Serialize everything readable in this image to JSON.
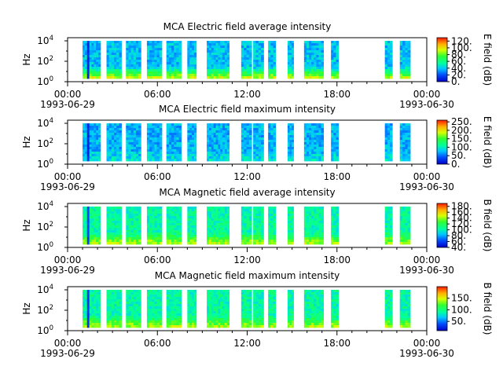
{
  "figure": {
    "background": "#ffffff"
  },
  "chart_data": [
    {
      "type": "heatmap",
      "title": "MCA  Electric field average intensity",
      "ylabel": "Hz",
      "y_scale": "log",
      "y_ticks": [
        {
          "base": "10",
          "exp": "0"
        },
        {
          "base": "10",
          "exp": "2"
        },
        {
          "base": "10",
          "exp": "4"
        }
      ],
      "x_ticks": [
        {
          "time": "00:00",
          "date": "1993-06-29"
        },
        {
          "time": "06:00",
          "date": ""
        },
        {
          "time": "12:00",
          "date": ""
        },
        {
          "time": "18:00",
          "date": ""
        },
        {
          "time": "00:00",
          "date": "1993-06-30"
        }
      ],
      "colorbar": {
        "label": "E field (dB)",
        "range": [
          0,
          130
        ],
        "ticks": [
          "0.",
          "20.",
          "40.",
          "60.",
          "80.",
          "100.",
          "120."
        ]
      },
      "data_hours": [
        [
          1.0,
          2.2
        ],
        [
          2.6,
          3.6
        ],
        [
          3.9,
          4.9
        ],
        [
          5.3,
          6.3
        ],
        [
          6.6,
          7.6
        ],
        [
          8.0,
          8.6
        ],
        [
          9.3,
          10.8
        ],
        [
          11.6,
          12.3
        ],
        [
          12.4,
          13.1
        ],
        [
          13.4,
          13.9
        ],
        [
          14.7,
          15.1
        ],
        [
          15.8,
          17.1
        ],
        [
          17.6,
          18.1
        ],
        [
          21.2,
          21.7
        ],
        [
          22.2,
          22.9
        ]
      ],
      "base_level": 0.3,
      "low_level": 0.7,
      "gap_hours": [
        1.35,
        1.5
      ],
      "gap_level": 0.05
    },
    {
      "type": "heatmap",
      "title": "MCA  Electric field maximum intensity",
      "ylabel": "Hz",
      "y_scale": "log",
      "y_ticks": [
        {
          "base": "10",
          "exp": "0"
        },
        {
          "base": "10",
          "exp": "2"
        },
        {
          "base": "10",
          "exp": "4"
        }
      ],
      "x_ticks": [
        {
          "time": "00:00",
          "date": "1993-06-29"
        },
        {
          "time": "06:00",
          "date": ""
        },
        {
          "time": "12:00",
          "date": ""
        },
        {
          "time": "18:00",
          "date": ""
        },
        {
          "time": "00:00",
          "date": "1993-06-30"
        }
      ],
      "colorbar": {
        "label": "E field (dB)",
        "range": [
          0,
          260
        ],
        "ticks": [
          "0.",
          "50.",
          "100.",
          "150.",
          "200.",
          "250."
        ]
      },
      "data_hours": [
        [
          1.0,
          2.2
        ],
        [
          2.6,
          3.6
        ],
        [
          3.9,
          4.9
        ],
        [
          5.3,
          6.3
        ],
        [
          6.6,
          7.6
        ],
        [
          8.0,
          8.6
        ],
        [
          9.3,
          10.8
        ],
        [
          11.6,
          12.3
        ],
        [
          12.4,
          13.1
        ],
        [
          13.4,
          13.9
        ],
        [
          14.7,
          15.1
        ],
        [
          15.8,
          17.1
        ],
        [
          17.6,
          18.1
        ],
        [
          21.2,
          21.7
        ],
        [
          22.2,
          22.9
        ]
      ],
      "base_level": 0.28,
      "low_level": 0.35,
      "gap_hours": [
        1.35,
        1.5
      ],
      "gap_level": 0.05
    },
    {
      "type": "heatmap",
      "title": "MCA  Magnetic field average intensity",
      "ylabel": "Hz",
      "y_scale": "log",
      "y_ticks": [
        {
          "base": "10",
          "exp": "0"
        },
        {
          "base": "10",
          "exp": "2"
        },
        {
          "base": "10",
          "exp": "4"
        }
      ],
      "x_ticks": [
        {
          "time": "00:00",
          "date": "1993-06-29"
        },
        {
          "time": "06:00",
          "date": ""
        },
        {
          "time": "12:00",
          "date": ""
        },
        {
          "time": "18:00",
          "date": ""
        },
        {
          "time": "00:00",
          "date": "1993-06-30"
        }
      ],
      "colorbar": {
        "label": "B field (dB)",
        "range": [
          40,
          190
        ],
        "ticks": [
          "40.",
          "60.",
          "80.",
          "100.",
          "120.",
          "140.",
          "160.",
          "180."
        ]
      },
      "data_hours": [
        [
          1.0,
          2.2
        ],
        [
          2.6,
          3.6
        ],
        [
          3.9,
          4.9
        ],
        [
          5.3,
          6.3
        ],
        [
          6.6,
          7.6
        ],
        [
          8.0,
          8.6
        ],
        [
          9.3,
          10.8
        ],
        [
          11.6,
          12.3
        ],
        [
          12.4,
          13.1
        ],
        [
          13.4,
          13.9
        ],
        [
          14.7,
          15.1
        ],
        [
          15.8,
          17.1
        ],
        [
          17.6,
          18.1
        ],
        [
          21.2,
          21.7
        ],
        [
          22.2,
          22.9
        ]
      ],
      "base_level": 0.42,
      "low_level": 0.68,
      "gap_hours": [
        1.35,
        1.5
      ],
      "gap_level": 0.1
    },
    {
      "type": "heatmap",
      "title": "MCA  Magnetic field maximum intensity",
      "ylabel": "Hz",
      "y_scale": "log",
      "y_ticks": [
        {
          "base": "10",
          "exp": "0"
        },
        {
          "base": "10",
          "exp": "2"
        },
        {
          "base": "10",
          "exp": "4"
        }
      ],
      "x_ticks": [
        {
          "time": "00:00",
          "date": "1993-06-29"
        },
        {
          "time": "06:00",
          "date": ""
        },
        {
          "time": "12:00",
          "date": ""
        },
        {
          "time": "18:00",
          "date": ""
        },
        {
          "time": "00:00",
          "date": "1993-06-30"
        }
      ],
      "colorbar": {
        "label": "B field (dB)",
        "range": [
          10,
          200
        ],
        "ticks": [
          "50.",
          "100.",
          "150."
        ]
      },
      "data_hours": [
        [
          1.0,
          2.2
        ],
        [
          2.6,
          3.6
        ],
        [
          3.9,
          4.9
        ],
        [
          5.3,
          6.3
        ],
        [
          6.6,
          7.6
        ],
        [
          8.0,
          8.6
        ],
        [
          9.3,
          10.8
        ],
        [
          11.6,
          12.3
        ],
        [
          12.4,
          13.1
        ],
        [
          13.4,
          13.9
        ],
        [
          14.7,
          15.1
        ],
        [
          15.8,
          17.1
        ],
        [
          17.6,
          18.1
        ],
        [
          21.2,
          21.7
        ],
        [
          22.2,
          22.9
        ]
      ],
      "base_level": 0.42,
      "low_level": 0.68,
      "gap_hours": [
        1.35,
        1.5
      ],
      "gap_level": 0.08
    }
  ]
}
